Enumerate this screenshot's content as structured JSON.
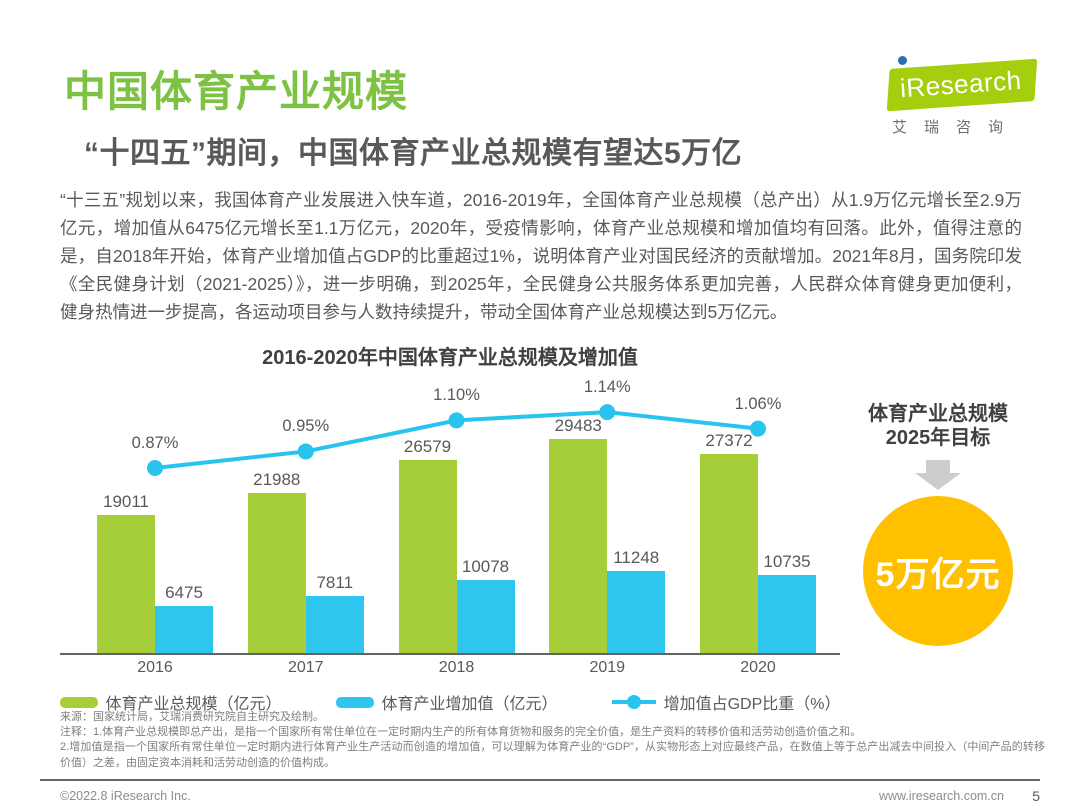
{
  "header": {
    "title": "中国体育产业规模",
    "subtitle": "“十四五”期间，中国体育产业总规模有望达5万亿",
    "logo": {
      "text_i": "i",
      "text_rest": "Research",
      "subtext": "艾瑞咨询",
      "green": "#A5CE0F",
      "dot_blue": "#2D6DB4"
    }
  },
  "intro": "“十三五”规划以来，我国体育产业发展进入快车道，2016-2019年，全国体育产业总规模（总产出）从1.9万亿元增长至2.9万亿元，增加值从6475亿元增长至1.1万亿元，2020年，受疫情影响，体育产业总规模和增加值均有回落。此外，值得注意的是，自2018年开始，体育产业增加值占GDP的比重超过1%，说明体育产业对国民经济的贡献增加。2021年8月，国务院印发《全民健身计划（2021-2025）》，进一步明确，到2025年，全民健身公共服务体系更加完善，人民群众体育健身更加便利，健身热情进一步提高，各运动项目参与人数持续提升，带动全国体育产业总规模达到5万亿元。",
  "chart_data": {
    "type": "bar",
    "title": "2016-2020年中国体育产业总规模及增加值",
    "categories": [
      "2016",
      "2017",
      "2018",
      "2019",
      "2020"
    ],
    "series": [
      {
        "name": "体育产业总规模（亿元）",
        "kind": "bar",
        "color": "#A5CE39",
        "values": [
          19011,
          21988,
          26579,
          29483,
          27372
        ]
      },
      {
        "name": "体育产业增加值（亿元）",
        "kind": "bar",
        "color": "#2EC5EF",
        "values": [
          6475,
          7811,
          10078,
          11248,
          10735
        ]
      },
      {
        "name": "增加值占GDP比重（%）",
        "kind": "line",
        "color": "#29C3EF",
        "values": [
          0.87,
          0.95,
          1.1,
          1.14,
          1.06
        ],
        "labels": [
          "0.87%",
          "0.95%",
          "1.10%",
          "1.14%",
          "1.06%"
        ]
      }
    ],
    "legend_position": "bottom",
    "grid": false,
    "y_axis": "hidden",
    "ylim_bars": [
      0,
      30000
    ],
    "ylim_line_pct": [
      0.8,
      1.2
    ]
  },
  "target_panel": {
    "heading_line1": "体育产业总规模",
    "heading_line2": "2025年目标",
    "value": "5万亿元",
    "circle_color": "#FFC000"
  },
  "notes": {
    "source": "来源：国家统计局，艾瑞消费研究院自主研究及绘制。",
    "note1": "注释：1.体育产业总规模即总产出，是指一个国家所有常住单位在一定时期内生产的所有体育货物和服务的完全价值，是生产资料的转移价值和活劳动创造价值之和。",
    "note2": "2.增加值是指一个国家所有常住单位一定时期内进行体育产业生产活动而创造的增加值，可以理解为体育产业的“GDP”，从实物形态上对应最终产品，在数值上等于总产出减去中间投入（中间产品的转移价值）之差，由固定资本消耗和活劳动创造的价值构成。"
  },
  "footer": {
    "left": "©2022.8 iResearch Inc.",
    "right": "www.iresearch.com.cn",
    "page": "5"
  },
  "colors": {
    "title_green": "#7DC243",
    "body_gray": "#595959",
    "dark_text": "#404040",
    "axis_gray": "#636363",
    "note_gray": "#7F7F7F"
  }
}
